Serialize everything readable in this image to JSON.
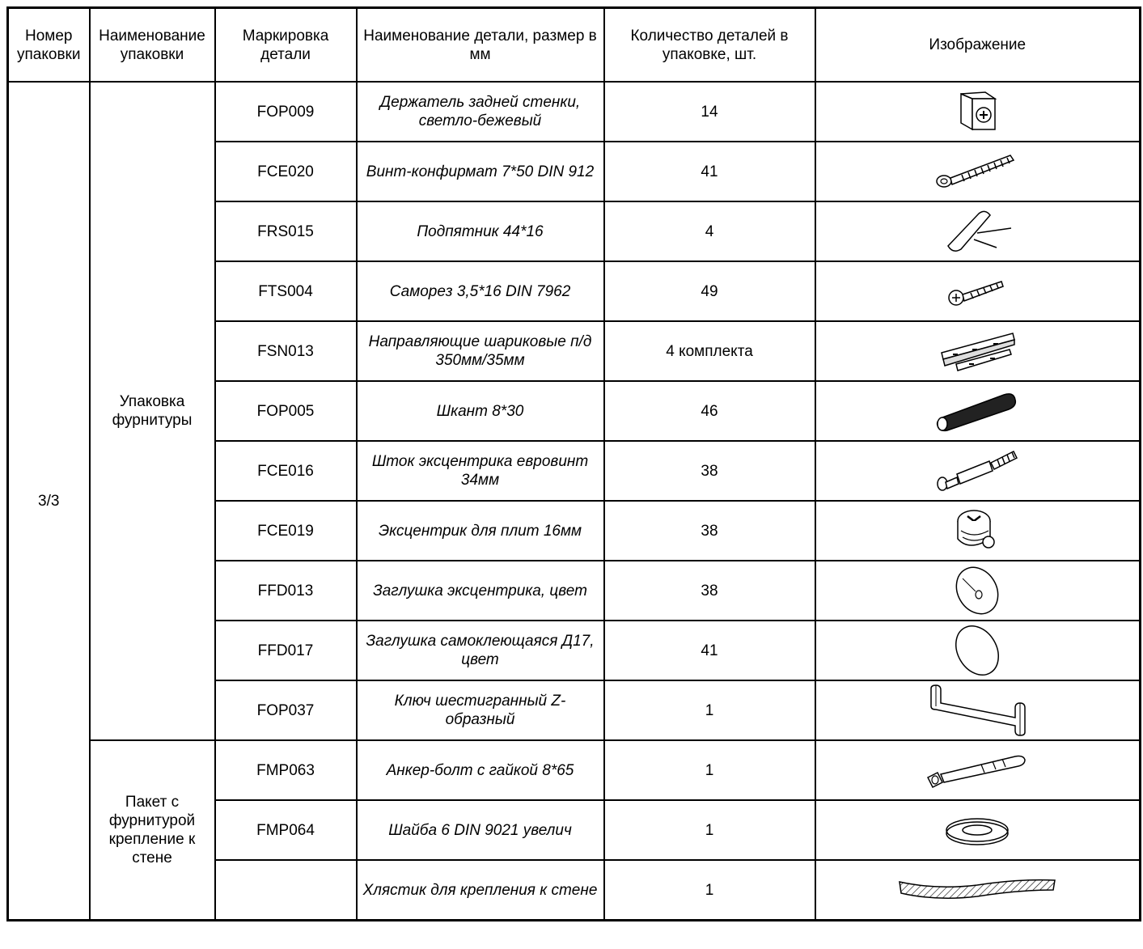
{
  "headers": {
    "pack_no": "Номер упаковки",
    "pack_name": "Наименование упаковки",
    "marking": "Маркировка детали",
    "part_name": "Наименование детали, размер в мм",
    "qty": "Количество деталей в упаковке, шт.",
    "image": "Изображение"
  },
  "pack_number": "3/3",
  "groups": [
    {
      "name": "Упаковка фурнитуры"
    },
    {
      "name": "Пакет с фурнитурой крепление к стене"
    }
  ],
  "rows": [
    {
      "code": "FOP009",
      "name": "Держатель задней стенки, светло-бежевый",
      "qty": "14",
      "icon": "back-panel-holder-icon"
    },
    {
      "code": "FCE020",
      "name": "Винт-конфирмат 7*50 DIN 912",
      "qty": "41",
      "icon": "confirmat-screw-icon"
    },
    {
      "code": "FRS015",
      "name": "Подпятник 44*16",
      "qty": "4",
      "icon": "foot-pad-icon"
    },
    {
      "code": "FTS004",
      "name": "Саморез 3,5*16 DIN 7962",
      "qty": "49",
      "icon": "self-tapping-screw-icon"
    },
    {
      "code": "FSN013",
      "name": "Направляющие шариковые п/д 350мм/35мм",
      "qty": "4 комплекта",
      "icon": "ball-slide-icon"
    },
    {
      "code": "FOP005",
      "name": "Шкант 8*30",
      "qty": "46",
      "icon": "dowel-icon"
    },
    {
      "code": "FCE016",
      "name": "Шток эксцентрика евровинт 34мм",
      "qty": "38",
      "icon": "cam-bolt-icon"
    },
    {
      "code": "FCE019",
      "name": "Эксцентрик для плит 16мм",
      "qty": "38",
      "icon": "cam-lock-icon"
    },
    {
      "code": "FFD013",
      "name": "Заглушка эксцентрика, цвет",
      "qty": "38",
      "icon": "cam-cap-icon"
    },
    {
      "code": "FFD017",
      "name": "Заглушка самоклеющаяся Д17, цвет",
      "qty": "41",
      "icon": "adhesive-cap-icon"
    },
    {
      "code": "FOP037",
      "name": "Ключ шестигранный Z-образный",
      "qty": "1",
      "icon": "hex-key-icon"
    },
    {
      "code": "FMP063",
      "name": "Анкер-болт с гайкой 8*65",
      "qty": "1",
      "icon": "anchor-bolt-icon"
    },
    {
      "code": "FMP064",
      "name": "Шайба 6 DIN 9021 увелич",
      "qty": "1",
      "icon": "washer-icon"
    },
    {
      "code": "",
      "name": "Хлястик для крепления к стене",
      "qty": "1",
      "icon": "wall-strap-icon"
    }
  ]
}
